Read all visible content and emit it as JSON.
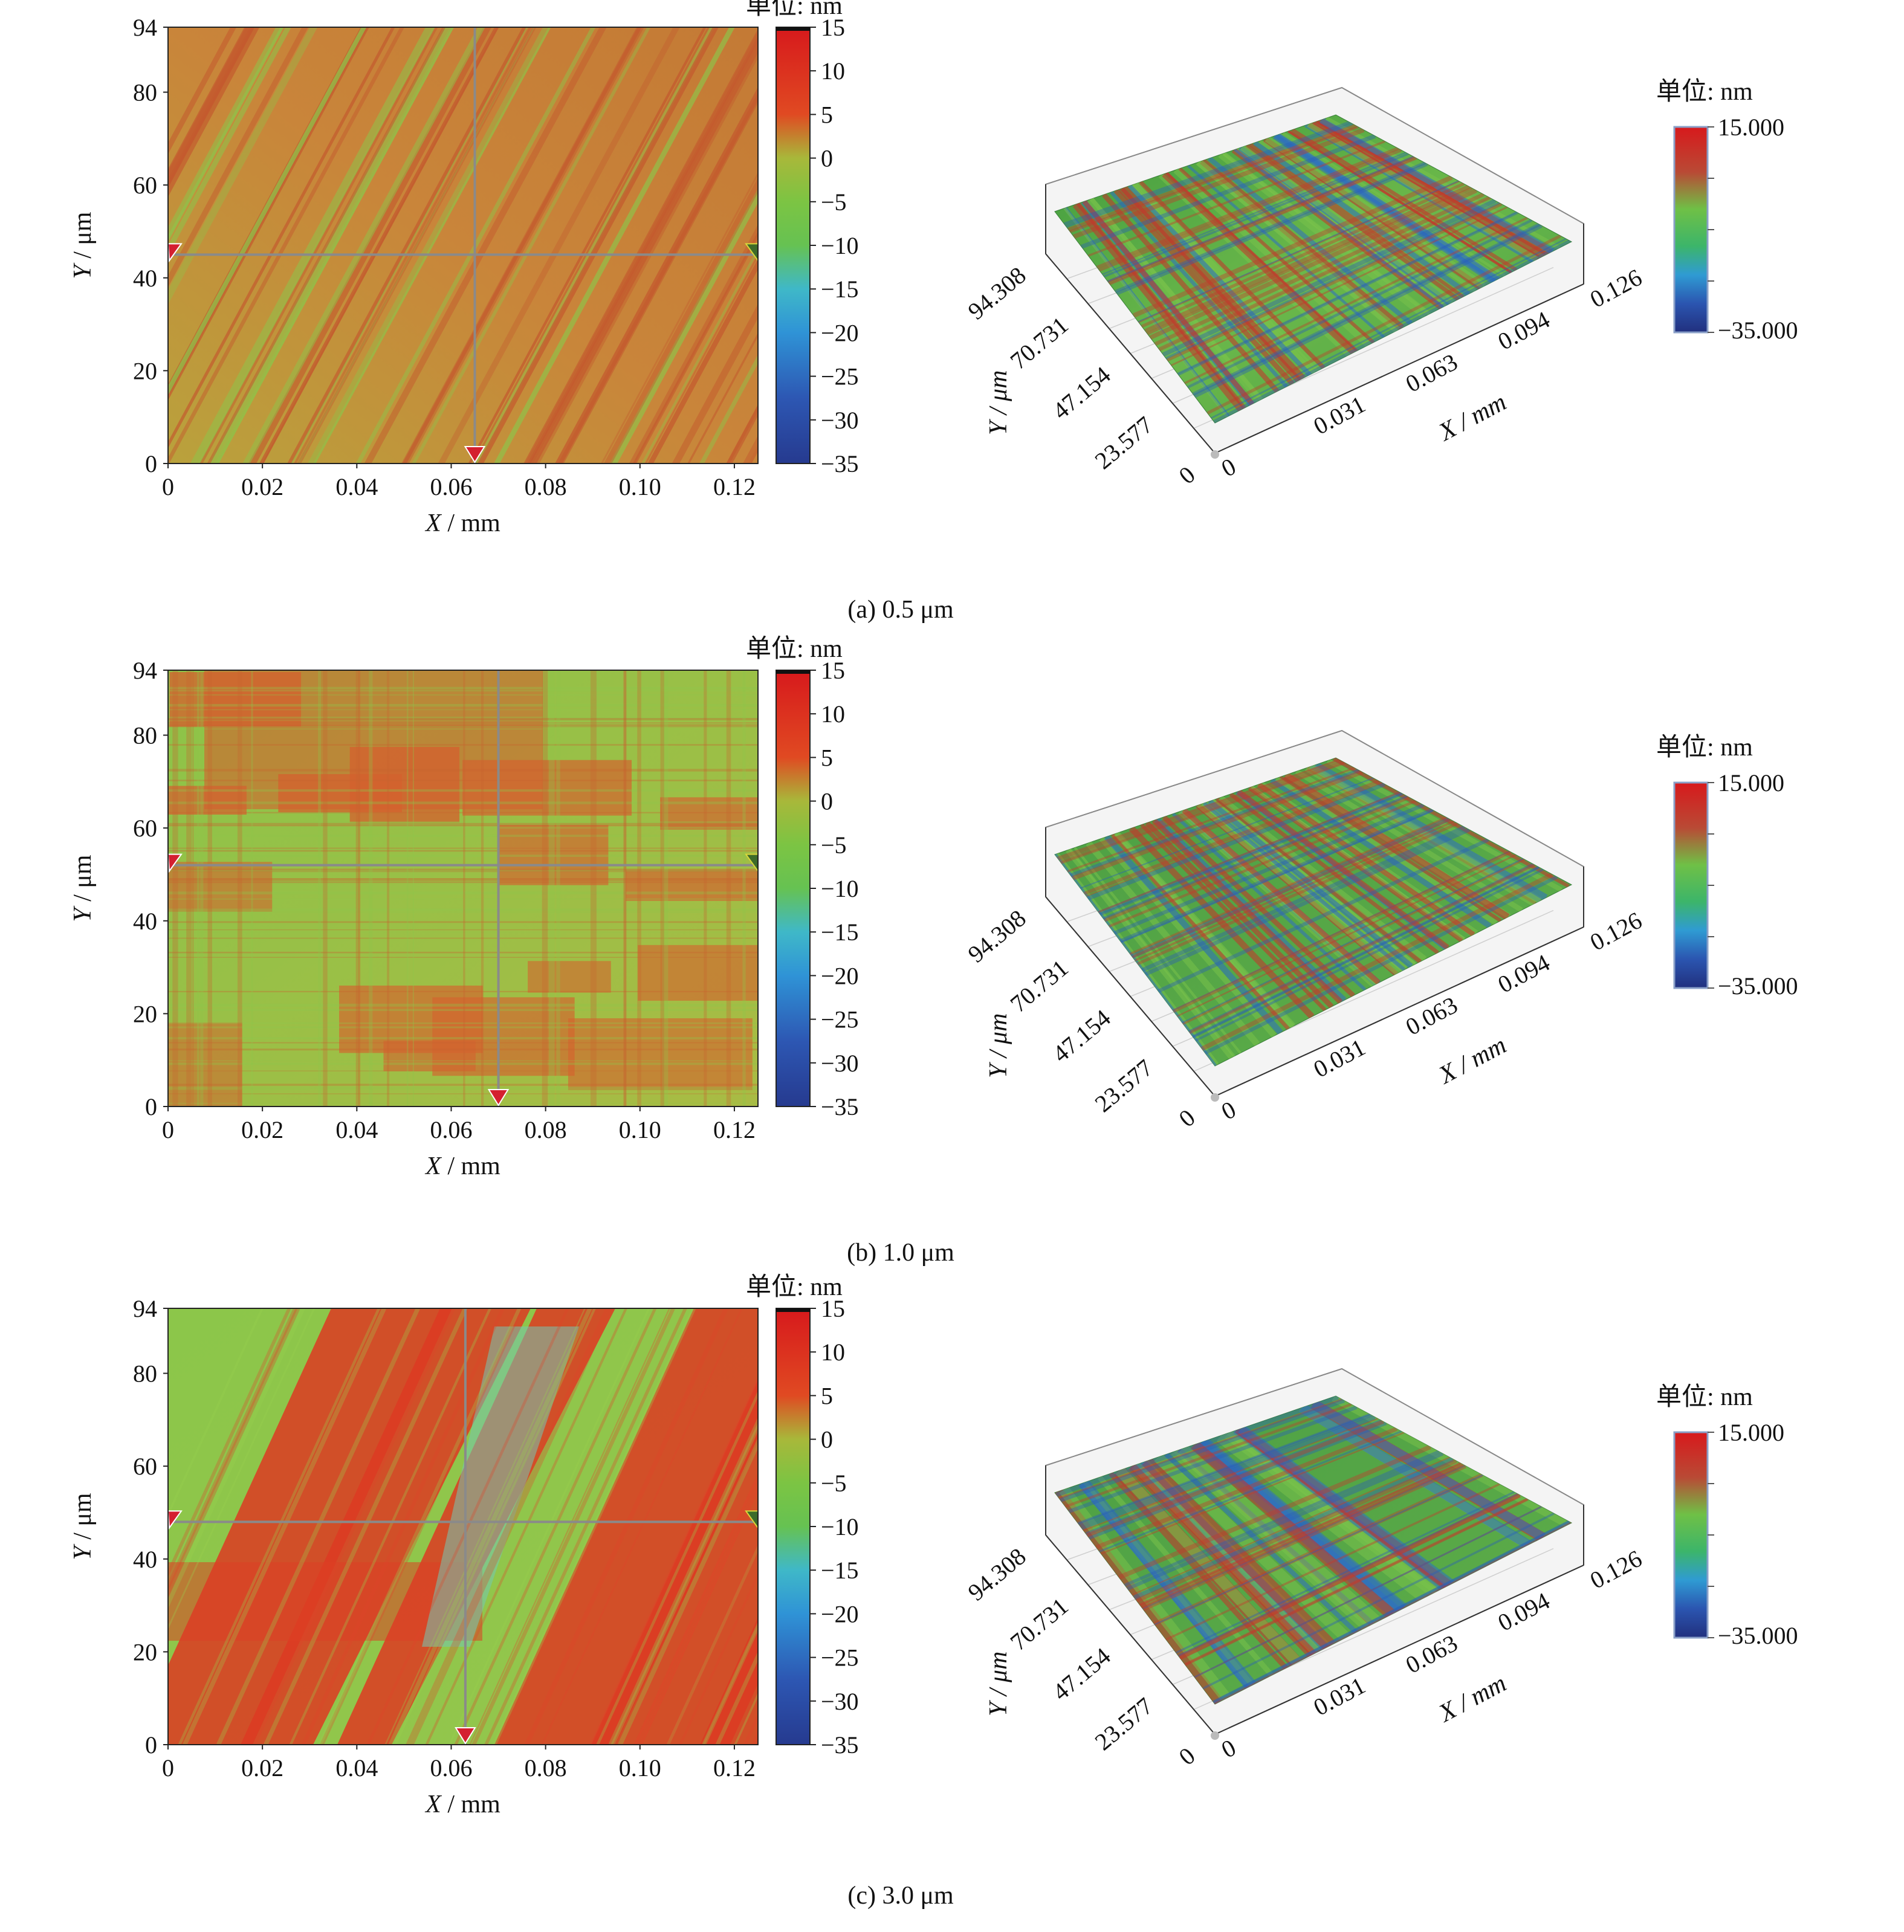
{
  "figure": {
    "panels": [
      {
        "caption": "(a) 0.5 μm",
        "map2d": {
          "x_label_var": "X",
          "x_label_unit": " / mm",
          "y_label_var": "Y",
          "y_label_unit": " / μm",
          "x_ticks": [
            "0",
            "0.02",
            "0.04",
            "0.06",
            "0.08",
            "0.10",
            "0.12"
          ],
          "y_ticks": [
            "0",
            "20",
            "40",
            "60",
            "80",
            "94"
          ],
          "colorbar_title": "单位: nm",
          "colorbar_ticks": [
            "15",
            "10",
            "5",
            "0",
            "−5",
            "−10",
            "−15",
            "−20",
            "−25",
            "−30",
            "−35"
          ],
          "crosshair": {
            "x_mm": 0.065,
            "y_um": 45
          }
        },
        "view3d": {
          "x_ticks": [
            "0",
            "0.031",
            "0.063",
            "0.094",
            "0.126"
          ],
          "y_ticks": [
            "0",
            "23.577",
            "47.154",
            "70.731",
            "94.308"
          ],
          "x_label": "X / mm",
          "y_label": "Y / μm",
          "legend_title": "单位: nm",
          "legend_max": "15.000",
          "legend_min": "−35.000"
        }
      },
      {
        "caption": "(b) 1.0 μm",
        "map2d": {
          "x_label_var": "X",
          "x_label_unit": " / mm",
          "y_label_var": "Y",
          "y_label_unit": " / μm",
          "x_ticks": [
            "0",
            "0.02",
            "0.04",
            "0.06",
            "0.08",
            "0.10",
            "0.12"
          ],
          "y_ticks": [
            "0",
            "20",
            "40",
            "60",
            "80",
            "94"
          ],
          "colorbar_title": "单位: nm",
          "colorbar_ticks": [
            "15",
            "10",
            "5",
            "0",
            "−5",
            "−10",
            "−15",
            "−20",
            "−25",
            "−30",
            "−35"
          ],
          "crosshair": {
            "x_mm": 0.07,
            "y_um": 52
          }
        },
        "view3d": {
          "x_ticks": [
            "0",
            "0.031",
            "0.063",
            "0.094",
            "0.126"
          ],
          "y_ticks": [
            "0",
            "23.577",
            "47.154",
            "70.731",
            "94.308"
          ],
          "x_label": "X / mm",
          "y_label": "Y / μm",
          "legend_title": "单位: nm",
          "legend_max": "15.000",
          "legend_min": "−35.000"
        }
      },
      {
        "caption": "(c) 3.0 μm",
        "map2d": {
          "x_label_var": "X",
          "x_label_unit": " / mm",
          "y_label_var": "Y",
          "y_label_unit": " / μm",
          "x_ticks": [
            "0",
            "0.02",
            "0.04",
            "0.06",
            "0.08",
            "0.10",
            "0.12"
          ],
          "y_ticks": [
            "0",
            "20",
            "40",
            "60",
            "80",
            "94"
          ],
          "colorbar_title": "单位: nm",
          "colorbar_ticks": [
            "15",
            "10",
            "5",
            "0",
            "−5",
            "−10",
            "−15",
            "−20",
            "−25",
            "−30",
            "−35"
          ],
          "crosshair": {
            "x_mm": 0.063,
            "y_um": 48
          }
        },
        "view3d": {
          "x_ticks": [
            "0",
            "0.031",
            "0.063",
            "0.094",
            "0.126"
          ],
          "y_ticks": [
            "0",
            "23.577",
            "47.154",
            "70.731",
            "94.308"
          ],
          "x_label": "X / mm",
          "y_label": "Y / μm",
          "legend_title": "单位: nm",
          "legend_max": "15.000",
          "legend_min": "−35.000"
        }
      }
    ]
  },
  "colors": {
    "scale_high": "#d7191c",
    "scale_mid_high": "#e0782a",
    "scale_mid": "#7cc443",
    "scale_mid_low": "#3fb8c8",
    "scale_low": "#263a8f",
    "crosshair": "#8a8a8a",
    "marker": "#d42030"
  },
  "chart_data": [
    {
      "type": "heatmap",
      "title": "(a) 0.5 μm",
      "xlabel": "X / mm",
      "ylabel": "Y / μm",
      "xlim": [
        0,
        0.125
      ],
      "ylim": [
        0,
        94
      ],
      "colorbar": {
        "unit": "nm",
        "range": [
          -35,
          15
        ]
      },
      "surface_character": "fine diagonal scratches, mostly orange-red with green streaks",
      "dominant_height_nm": [
        5,
        0
      ]
    },
    {
      "type": "heatmap",
      "title": "(b) 1.0 μm",
      "xlabel": "X / mm",
      "ylabel": "Y / μm",
      "xlim": [
        0,
        0.125
      ],
      "ylim": [
        0,
        94
      ],
      "colorbar": {
        "unit": "nm",
        "range": [
          -35,
          15
        ]
      },
      "surface_character": "cross-hatched pattern of orange-red patches on green",
      "dominant_height_nm": [
        5,
        -5
      ]
    },
    {
      "type": "heatmap",
      "title": "(c) 3.0 μm",
      "xlabel": "X / mm",
      "ylabel": "Y / μm",
      "xlim": [
        0,
        0.125
      ],
      "ylim": [
        0,
        94
      ],
      "colorbar": {
        "unit": "nm",
        "range": [
          -35,
          15
        ]
      },
      "surface_character": "broad diagonal red bands on green background",
      "dominant_height_nm": [
        15,
        -10
      ]
    }
  ]
}
